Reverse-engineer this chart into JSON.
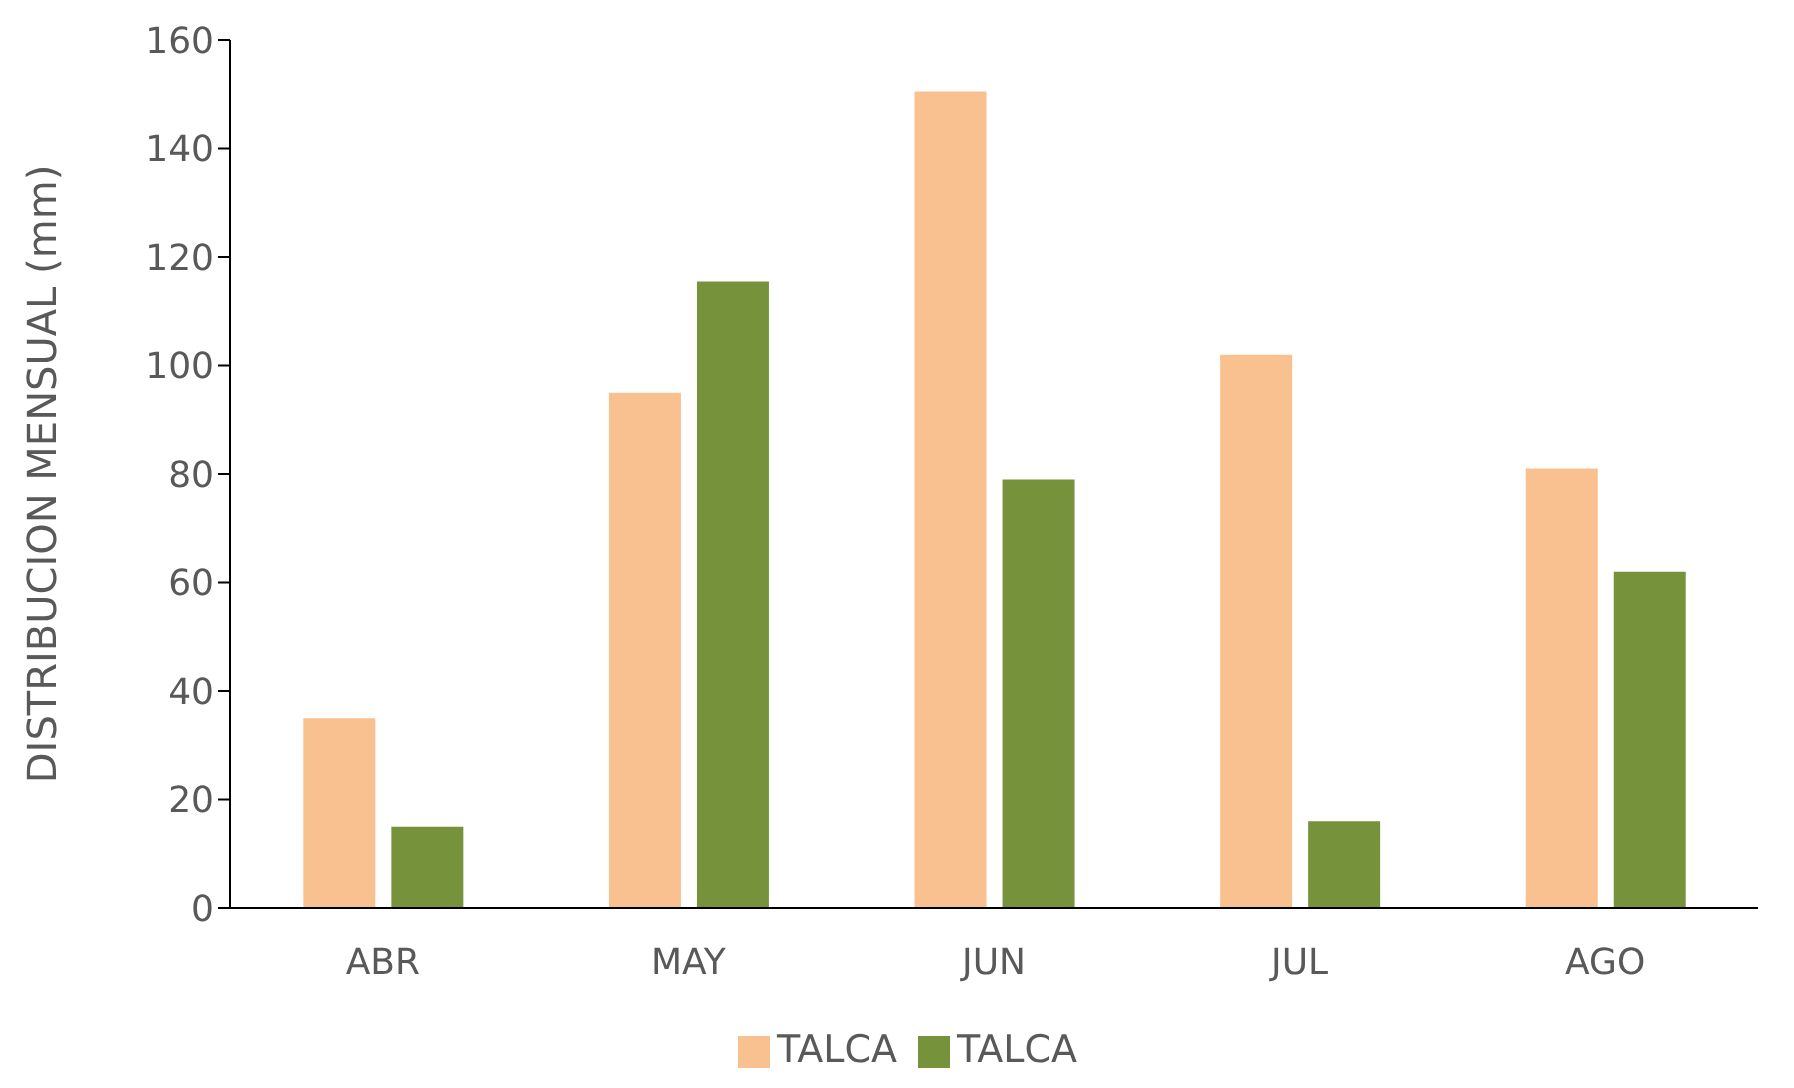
{
  "chart_data": {
    "type": "bar",
    "ylabel": "DISTRIBUCION MENSUAL (mm)",
    "categories": [
      "ABR",
      "MAY",
      "JUN",
      "JUL",
      "AGO"
    ],
    "series": [
      {
        "name": "TALCA",
        "color": "#f9c190",
        "values": [
          35,
          95,
          150.5,
          102,
          81
        ]
      },
      {
        "name": "TALCA",
        "color": "#76933c",
        "values": [
          15,
          115.5,
          79,
          16,
          62
        ]
      }
    ],
    "ylim": [
      0,
      160
    ],
    "yticks": [
      0,
      20,
      40,
      60,
      80,
      100,
      120,
      140,
      160
    ],
    "grid": false,
    "legend": "bottom"
  }
}
